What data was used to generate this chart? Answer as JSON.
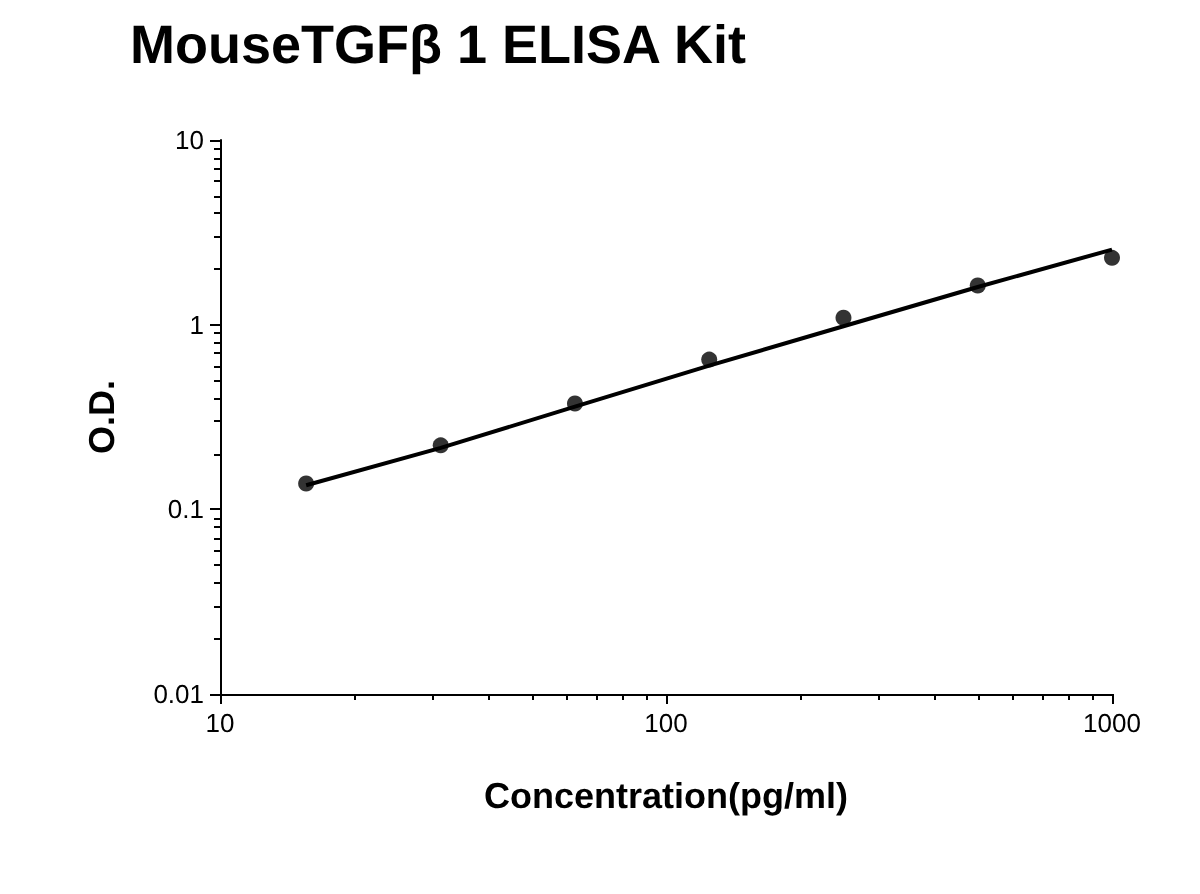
{
  "chart_data": {
    "type": "scatter",
    "title": "MouseTGFβ 1 ELISA Kit",
    "xlabel": "Concentration(pg/ml)",
    "ylabel": "O.D.",
    "log": "xy",
    "grid": false,
    "xlim": [
      10,
      1000
    ],
    "xticks": [
      10,
      100,
      1000
    ],
    "ylim": [
      0.01,
      10
    ],
    "yticks": [
      0.01,
      0.1,
      1,
      10
    ],
    "series": [
      {
        "marker": "circle",
        "color": "#000000",
        "x": [
          15.6,
          31.25,
          62.5,
          125,
          250,
          500,
          1000
        ],
        "values": [
          0.138,
          0.222,
          0.374,
          0.647,
          1.09,
          1.63,
          2.3
        ]
      },
      {
        "type": "line",
        "marker": "none",
        "line_style": "solid",
        "color": "#000000",
        "x": [
          15.6,
          31.25,
          62.5,
          125,
          250,
          500,
          1000
        ],
        "values": [
          0.135,
          0.215,
          0.36,
          0.6,
          0.98,
          1.6,
          2.55
        ]
      }
    ]
  }
}
